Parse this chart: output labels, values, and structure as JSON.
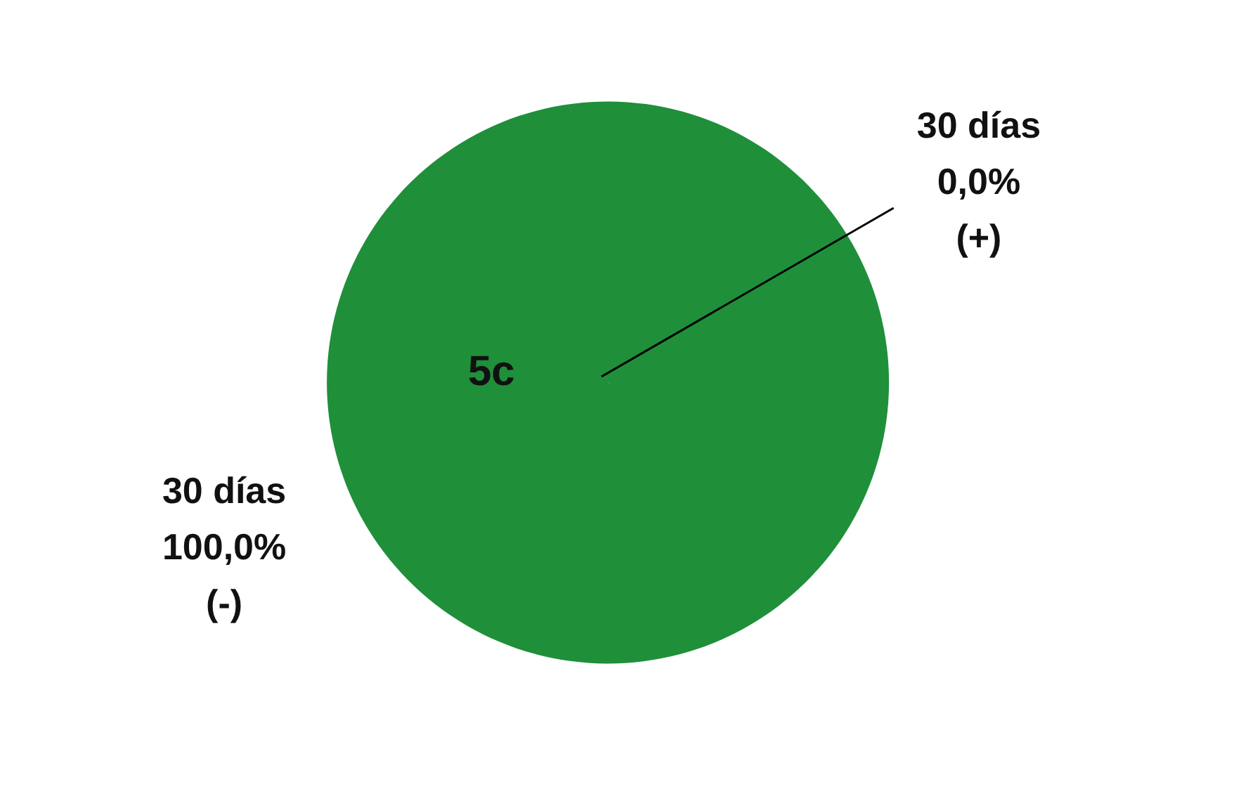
{
  "chart_data": {
    "type": "pie",
    "title": "5c",
    "categories": [
      "30 días",
      "30 días"
    ],
    "values": [
      0,
      100
    ],
    "value_labels": [
      "0,0%",
      "100,0%"
    ],
    "colors": [
      "#1f8f3a",
      "#1f8f3a"
    ],
    "annotations": [
      "(+)",
      "(-)"
    ]
  }
}
